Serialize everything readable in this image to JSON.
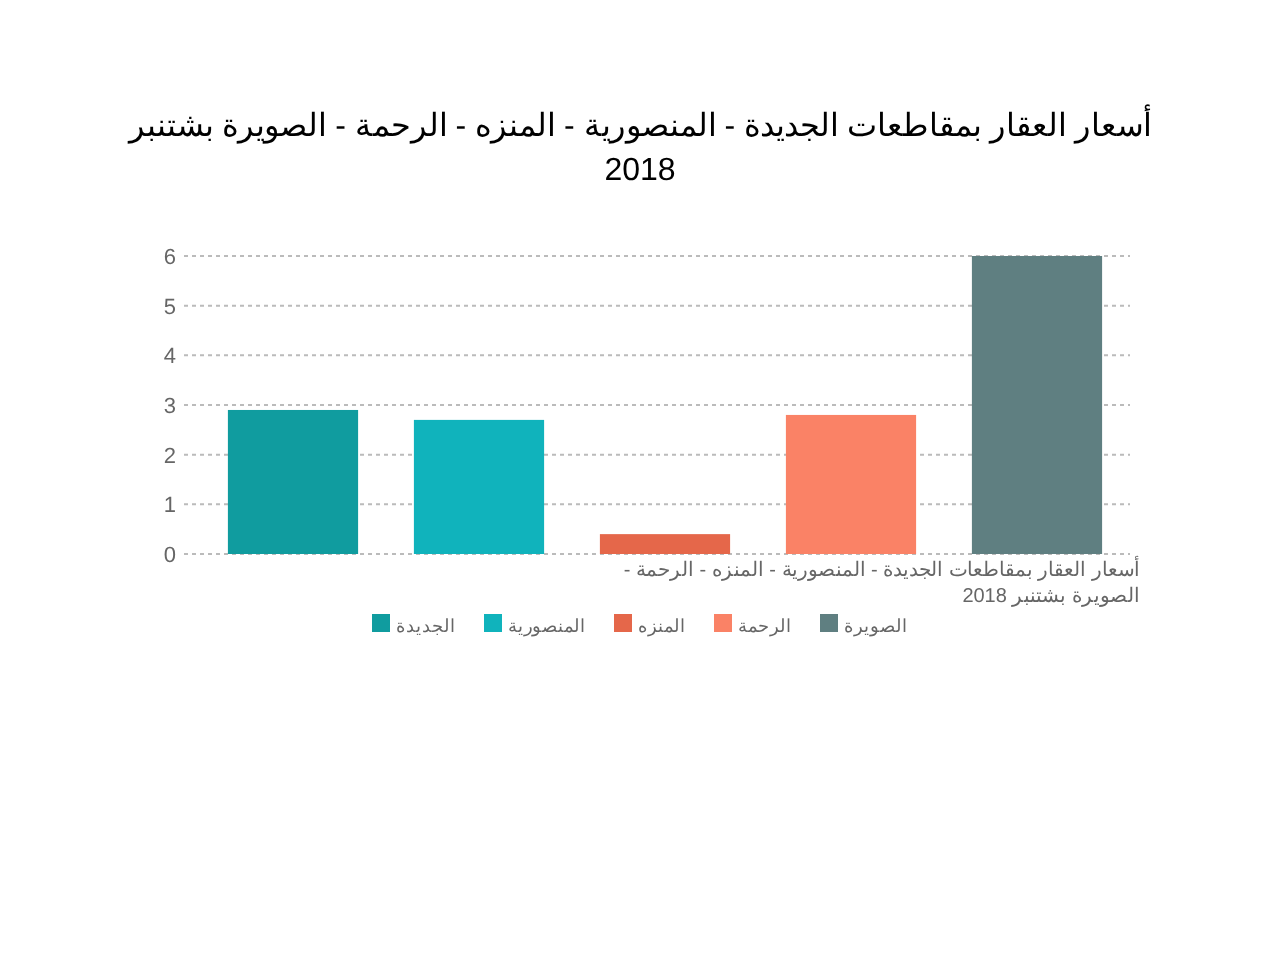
{
  "chart_data": {
    "type": "bar",
    "title": "أسعار العقار بمقاطعات الجديدة - المنصورية - المنزه - الرحمة - الصويرة بشتنبر 2018",
    "xlabel": "أسعار العقار بمقاطعات الجديدة - المنصورية - المنزه - الرحمة - الصويرة بشتنبر 2018",
    "categories": [
      null,
      null,
      null,
      null,
      null
    ],
    "series": [
      {
        "name": "الجديدة",
        "color": "#109c9f",
        "values": [
          2.9,
          null,
          null,
          null,
          null
        ]
      },
      {
        "name": "المنصورية",
        "color": "#10b3bc",
        "values": [
          null,
          2.7,
          null,
          null,
          null
        ]
      },
      {
        "name": "المنزه",
        "color": "#e5674a",
        "values": [
          null,
          null,
          0.4,
          null,
          null
        ]
      },
      {
        "name": "الرحمة",
        "color": "#fa8266",
        "values": [
          null,
          null,
          null,
          2.8,
          null
        ]
      },
      {
        "name": "الصويرة",
        "color": "#5f7f81",
        "values": [
          null,
          null,
          null,
          null,
          6
        ]
      }
    ],
    "ylim": [
      0,
      6
    ],
    "yticks": [
      0,
      1,
      2,
      3,
      4,
      5,
      6
    ],
    "grid": "y",
    "legend": "bottom"
  }
}
